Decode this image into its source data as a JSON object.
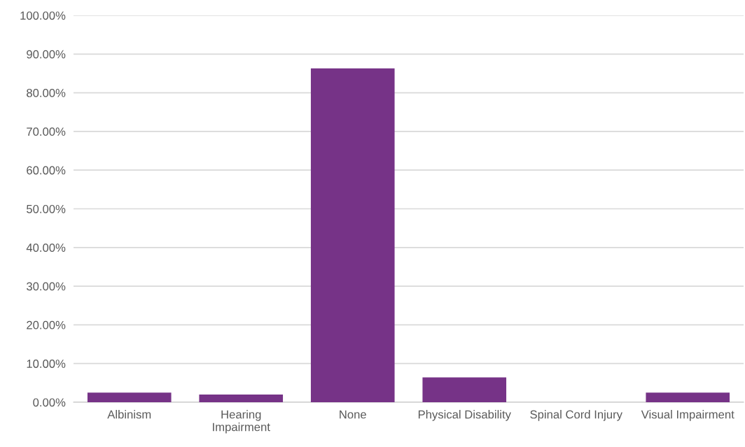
{
  "chart_data": {
    "type": "bar",
    "categories": [
      "Albinism",
      "Hearing\nImpairment",
      "None",
      "Physical Disability",
      "Spinal Cord Injury",
      "Visual Impairment"
    ],
    "values": [
      2.5,
      2.0,
      86.3,
      6.4,
      0,
      2.5
    ],
    "color": "#763387",
    "ylim": [
      0,
      100
    ],
    "yticks": [
      {
        "value": 0,
        "label": "0.00%"
      },
      {
        "value": 10,
        "label": "10.00%"
      },
      {
        "value": 20,
        "label": "20.00%"
      },
      {
        "value": 30,
        "label": "30.00%"
      },
      {
        "value": 40,
        "label": "40.00%"
      },
      {
        "value": 50,
        "label": "50.00%"
      },
      {
        "value": 60,
        "label": "60.00%"
      },
      {
        "value": 70,
        "label": "70.00%"
      },
      {
        "value": 80,
        "label": "80.00%"
      },
      {
        "value": 90,
        "label": "90.00%"
      },
      {
        "value": 100,
        "label": "100.00%"
      }
    ],
    "grid": "y"
  }
}
